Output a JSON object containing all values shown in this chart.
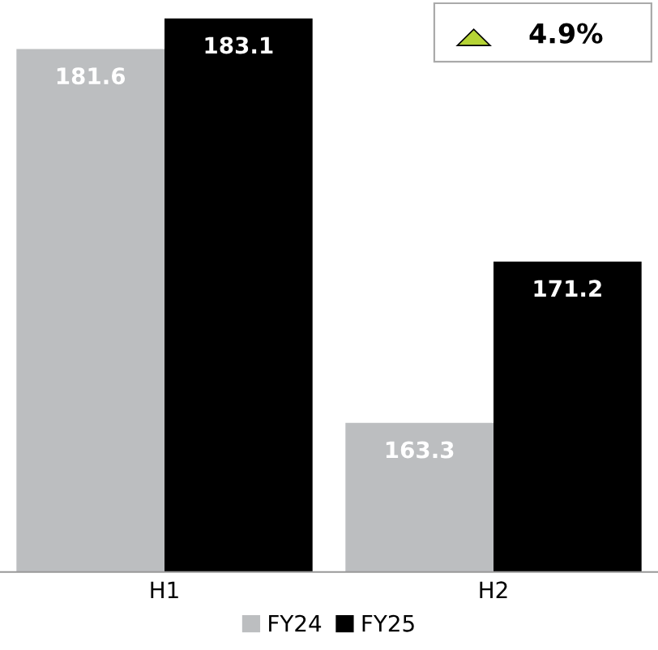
{
  "chart_data": {
    "type": "bar",
    "categories": [
      "H1",
      "H2"
    ],
    "series": [
      {
        "name": "FY24",
        "color": "#bcbec0",
        "values": [
          181.6,
          163.3
        ]
      },
      {
        "name": "FY25",
        "color": "#000000",
        "values": [
          183.1,
          171.2
        ]
      }
    ],
    "ylim": [
      156,
      184
    ],
    "tick_labels": "x",
    "data_labels": true,
    "legend": "bottom",
    "grid": false,
    "annotations": [
      "4.9%"
    ]
  }
}
